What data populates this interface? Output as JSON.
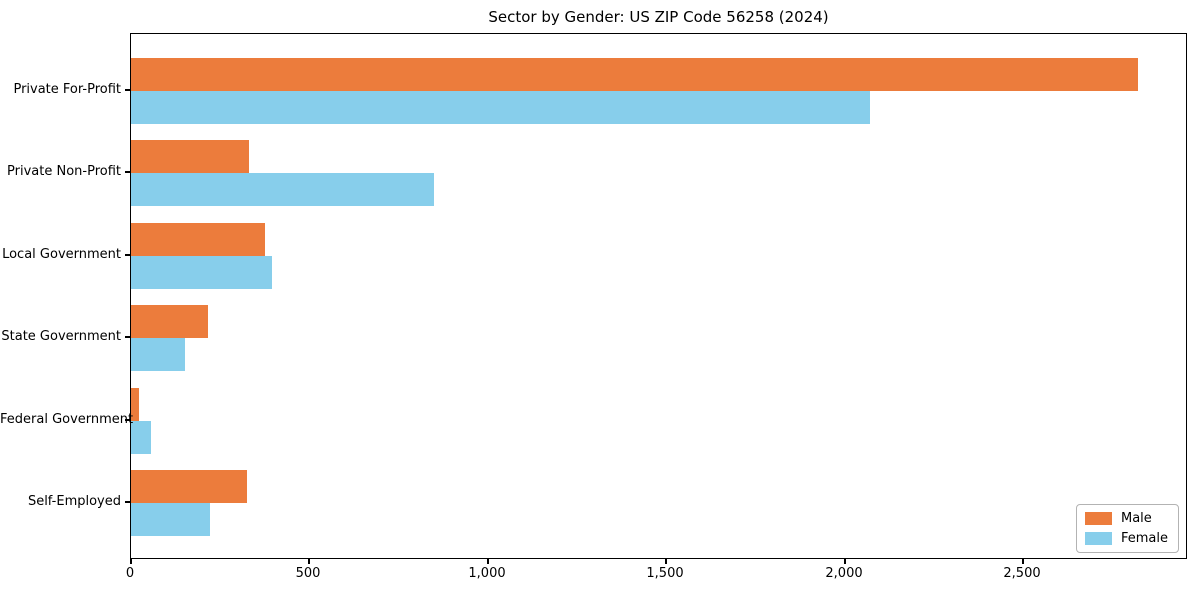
{
  "figure": {
    "background": "#ffffff",
    "title": "Sector by Gender: US ZIP Code 56258 (2024)"
  },
  "chart_data": {
    "type": "bar",
    "orientation": "horizontal",
    "title": "Sector by Gender: US ZIP Code 56258 (2024)",
    "categories": [
      "Private For-Profit",
      "Private Non-Profit",
      "Local Government",
      "State Government",
      "Federal Government",
      "Self-Employed"
    ],
    "series": [
      {
        "name": "Male",
        "color": "#ec7c3c",
        "values": [
          2820,
          330,
          375,
          215,
          22,
          325
        ]
      },
      {
        "name": "Female",
        "color": "#87ceeb",
        "values": [
          2070,
          850,
          395,
          150,
          55,
          220
        ]
      }
    ],
    "xlabel": "",
    "ylabel": "",
    "xlim": [
      0,
      2961
    ],
    "xticks": [
      0,
      500,
      1000,
      1500,
      2000,
      2500
    ],
    "xtick_labels": [
      "0",
      "500",
      "1,000",
      "1,500",
      "2,000",
      "2,500"
    ],
    "bar_group_order": [
      "Male top",
      "Female bottom"
    ],
    "grid": false,
    "legend": {
      "position": "lower right",
      "entries": [
        "Male",
        "Female"
      ]
    },
    "axis_color": "#000000",
    "text_color": "#000000"
  }
}
